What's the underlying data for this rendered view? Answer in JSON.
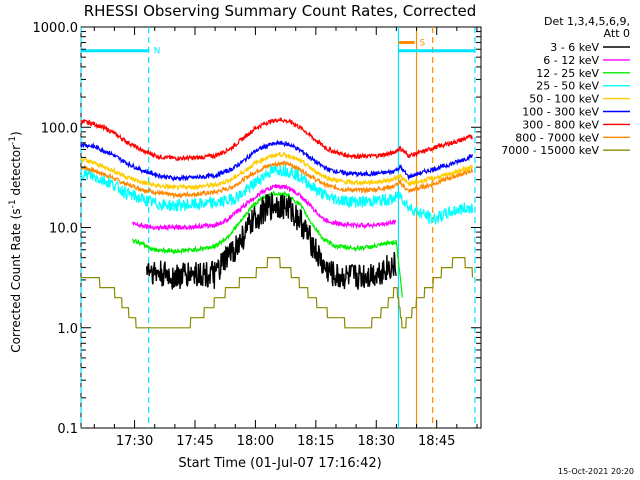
{
  "chart_data": {
    "type": "line",
    "title": "RHESSI Observing Summary Count Rates, Corrected",
    "xlabel": "Start Time (01-Jul-07 17:16:42)",
    "ylabel_parts": [
      "Corrected Count Rate (s",
      "-1",
      " detector",
      "-1",
      ")"
    ],
    "yscale": "log",
    "ylim": [
      0.1,
      1000
    ],
    "xlim_min": [
      1036.7,
      1136
    ],
    "xticks": [
      {
        "v": 1050,
        "label": "17:30"
      },
      {
        "v": 1065,
        "label": "17:45"
      },
      {
        "v": 1080,
        "label": "18:00"
      },
      {
        "v": 1095,
        "label": "18:15"
      },
      {
        "v": 1110,
        "label": "18:30"
      },
      {
        "v": 1125,
        "label": "18:45"
      }
    ],
    "yticks": [
      {
        "v": 0.1,
        "label": "0.1"
      },
      {
        "v": 1,
        "label": "1.0"
      },
      {
        "v": 10,
        "label": "10.0"
      },
      {
        "v": 100,
        "label": "100.0"
      },
      {
        "v": 1000,
        "label": "1000.0"
      }
    ],
    "legend_header": [
      "Det 1,3,4,5,6,9,",
      "Att 0"
    ],
    "legend_position": "right",
    "flags": {
      "night": {
        "label": "N",
        "t": [
          1036.7,
          1053.5
        ],
        "y": 580,
        "color": "#00e5ff"
      },
      "saa": {
        "label": "S",
        "t": [
          1115.5,
          1119.5
        ],
        "y": 700,
        "color": "#ff8c00"
      },
      "high": {
        "t": [
          1115.5,
          1134.5
        ],
        "y": 580,
        "color": "#00e5ff"
      }
    },
    "markers": [
      {
        "t": 1036.7,
        "color": "#00e5ff",
        "style": "dash"
      },
      {
        "t": 1053.5,
        "color": "#00e5ff",
        "style": "dash"
      },
      {
        "t": 1115.5,
        "color": "#00e5ff",
        "style": "solid"
      },
      {
        "t": 1120.0,
        "color": "#ff8c00",
        "style": "solid"
      },
      {
        "t": 1124.0,
        "color": "#ff8c00",
        "style": "dash"
      },
      {
        "t": 1134.5,
        "color": "#00e5ff",
        "style": "dash"
      }
    ],
    "series": [
      {
        "name": "3 - 6 keV",
        "color": "#000000",
        "t": [
          1053,
          1055,
          1060,
          1065,
          1070,
          1073,
          1076,
          1079,
          1082,
          1085,
          1088,
          1091,
          1094,
          1097,
          1100,
          1105,
          1110,
          1113,
          1115
        ],
        "y": [
          4,
          3.5,
          3.2,
          3.5,
          3.3,
          5,
          7,
          11,
          15,
          17,
          16,
          12,
          7,
          4,
          3.2,
          3.2,
          3.5,
          4,
          4.2
        ]
      },
      {
        "name": "6 - 12 keV",
        "color": "#ff00ff",
        "t": [
          1049.5,
          1052,
          1055,
          1060,
          1065,
          1070,
          1073,
          1076,
          1079,
          1082,
          1085,
          1088,
          1091,
          1094,
          1097,
          1100,
          1105,
          1110,
          1113,
          1115
        ],
        "y": [
          11,
          10.5,
          10,
          10,
          10.2,
          10.5,
          12,
          15,
          19,
          23,
          26,
          25,
          21,
          16,
          12,
          11,
          10.5,
          10.6,
          11,
          11.5
        ]
      },
      {
        "name": "12 - 25 keV",
        "color": "#00ee00",
        "t": [
          1049.5,
          1052,
          1055,
          1060,
          1065,
          1070,
          1073,
          1076,
          1079,
          1082,
          1085,
          1088,
          1091,
          1094,
          1097,
          1100,
          1105,
          1110,
          1113,
          1115,
          1116.5
        ],
        "y": [
          7.5,
          6.8,
          6,
          5.8,
          6,
          6.5,
          8,
          11,
          16,
          20,
          22,
          21,
          17,
          11,
          7.5,
          6.5,
          6.2,
          6.5,
          7,
          7.2,
          2
        ]
      },
      {
        "name": "25 - 50 keV",
        "color": "#00ffff",
        "t": [
          1036.7,
          1040,
          1044,
          1048,
          1052,
          1056,
          1060,
          1065,
          1070,
          1074,
          1077,
          1080,
          1083,
          1086,
          1089,
          1092,
          1095,
          1098,
          1102,
          1106,
          1110,
          1114,
          1116,
          1118,
          1121,
          1124,
          1127,
          1130,
          1134
        ],
        "y": [
          35,
          32,
          28,
          22,
          19,
          17,
          16.5,
          17,
          17.5,
          19,
          22,
          28,
          35,
          38,
          36,
          30,
          24,
          20,
          18.5,
          18,
          18.5,
          19,
          21,
          16,
          14,
          12,
          13.5,
          15,
          16
        ]
      },
      {
        "name": "50 - 100 keV",
        "color": "#ffcc00",
        "t": [
          1036.7,
          1040,
          1044,
          1048,
          1052,
          1056,
          1060,
          1065,
          1070,
          1074,
          1077,
          1080,
          1083,
          1086,
          1089,
          1092,
          1095,
          1098,
          1102,
          1106,
          1110,
          1114,
          1116,
          1118,
          1121,
          1124,
          1127,
          1130,
          1134
        ],
        "y": [
          48,
          44,
          38,
          32,
          28,
          26,
          25,
          25.5,
          26.5,
          30,
          36,
          44,
          50,
          54,
          51,
          44,
          36,
          31,
          28.5,
          28,
          28.5,
          30,
          33,
          27,
          29,
          31,
          33,
          36,
          40
        ]
      },
      {
        "name": "100 - 300 keV",
        "color": "#0000ff",
        "t": [
          1036.7,
          1040,
          1044,
          1048,
          1052,
          1056,
          1060,
          1065,
          1070,
          1074,
          1077,
          1080,
          1083,
          1086,
          1089,
          1092,
          1095,
          1098,
          1102,
          1106,
          1110,
          1114,
          1116,
          1118,
          1121,
          1124,
          1127,
          1130,
          1134
        ],
        "y": [
          68,
          64,
          55,
          44,
          37,
          33,
          31,
          31.5,
          33,
          38,
          46,
          58,
          66,
          70,
          66,
          56,
          45,
          38,
          35,
          34,
          34.5,
          36,
          40,
          32,
          35,
          38,
          41,
          45,
          52
        ]
      },
      {
        "name": "300 - 800 keV",
        "color": "#ff0000",
        "t": [
          1036.7,
          1040,
          1044,
          1048,
          1052,
          1056,
          1060,
          1065,
          1070,
          1074,
          1077,
          1080,
          1083,
          1086,
          1089,
          1092,
          1095,
          1098,
          1102,
          1106,
          1110,
          1114,
          1116,
          1118,
          1121,
          1124,
          1127,
          1130,
          1134
        ],
        "y": [
          115,
          108,
          92,
          72,
          58,
          51,
          49,
          49.5,
          52,
          62,
          78,
          98,
          112,
          120,
          112,
          94,
          74,
          60,
          53,
          51,
          52,
          55,
          62,
          52,
          56,
          62,
          67,
          72,
          82
        ]
      },
      {
        "name": "800 - 7000 keV",
        "color": "#ff8800",
        "t": [
          1036.7,
          1040,
          1044,
          1048,
          1052,
          1056,
          1060,
          1065,
          1070,
          1074,
          1077,
          1080,
          1083,
          1086,
          1089,
          1092,
          1095,
          1098,
          1102,
          1106,
          1110,
          1114,
          1116,
          1118,
          1121,
          1124,
          1127,
          1130,
          1134
        ],
        "y": [
          40,
          37,
          32,
          27,
          24,
          22,
          21,
          21.5,
          22.5,
          25,
          30,
          36,
          41,
          44,
          42,
          36,
          30,
          26,
          24,
          23.5,
          24,
          25.5,
          28,
          23,
          25,
          27,
          30,
          33,
          37
        ]
      },
      {
        "name": "7000 - 15000 keV",
        "color": "#8b8b00",
        "t": [
          1036.7,
          1040,
          1044,
          1046,
          1048,
          1050,
          1051,
          1054,
          1058,
          1062,
          1065,
          1068,
          1071,
          1074,
          1077,
          1080,
          1083,
          1086,
          1089,
          1092,
          1095,
          1098,
          1101,
          1104,
          1107,
          1110,
          1113,
          1115,
          1116.5,
          1118,
          1120,
          1123,
          1126,
          1129,
          1132,
          1134
        ],
        "y": [
          3.5,
          3,
          2.5,
          2,
          1.5,
          1.2,
          1.0,
          1.0,
          1.0,
          1.0,
          1.2,
          1.5,
          2,
          2.5,
          3,
          3.5,
          4.5,
          4.5,
          3.5,
          2.5,
          1.8,
          1.4,
          1.2,
          1.0,
          1.0,
          1.2,
          1.8,
          2.5,
          1.0,
          1.2,
          1.8,
          2.5,
          3.5,
          4.5,
          4.5,
          3.5
        ]
      }
    ],
    "timestamp": "15-Oct-2021 20:20"
  }
}
